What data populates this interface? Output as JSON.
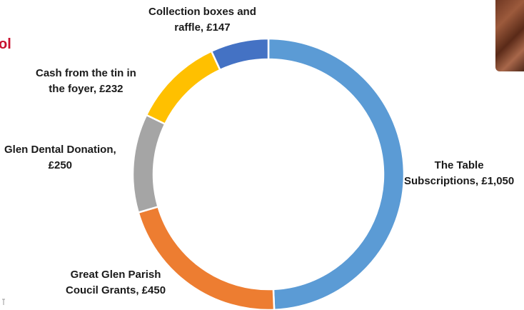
{
  "fragments": {
    "left_edge_text": "ol"
  },
  "chart_data": {
    "type": "pie",
    "style": "donut",
    "title": "",
    "labels": [
      [
        "The Table",
        "Subscriptions, £1,050"
      ],
      [
        "Great Glen Parish",
        "Coucil Grants, £450"
      ],
      [
        "Glen Dental Donation,",
        "£250"
      ],
      [
        "Cash from the tin in",
        "the foyer, £232"
      ],
      [
        "Collection boxes and",
        "raffle, £147"
      ]
    ],
    "categories": [
      "The Table Subscriptions",
      "Great Glen Parish Coucil Grants",
      "Glen Dental Donation",
      "Cash from the tin in the foyer",
      "Collection boxes and raffle"
    ],
    "values": [
      1050,
      450,
      250,
      232,
      147
    ],
    "colors": [
      "#5b9bd5",
      "#ed7d31",
      "#a5a5a5",
      "#ffc000",
      "#4472c4"
    ],
    "start": "top, clockwise",
    "legend": "none"
  }
}
